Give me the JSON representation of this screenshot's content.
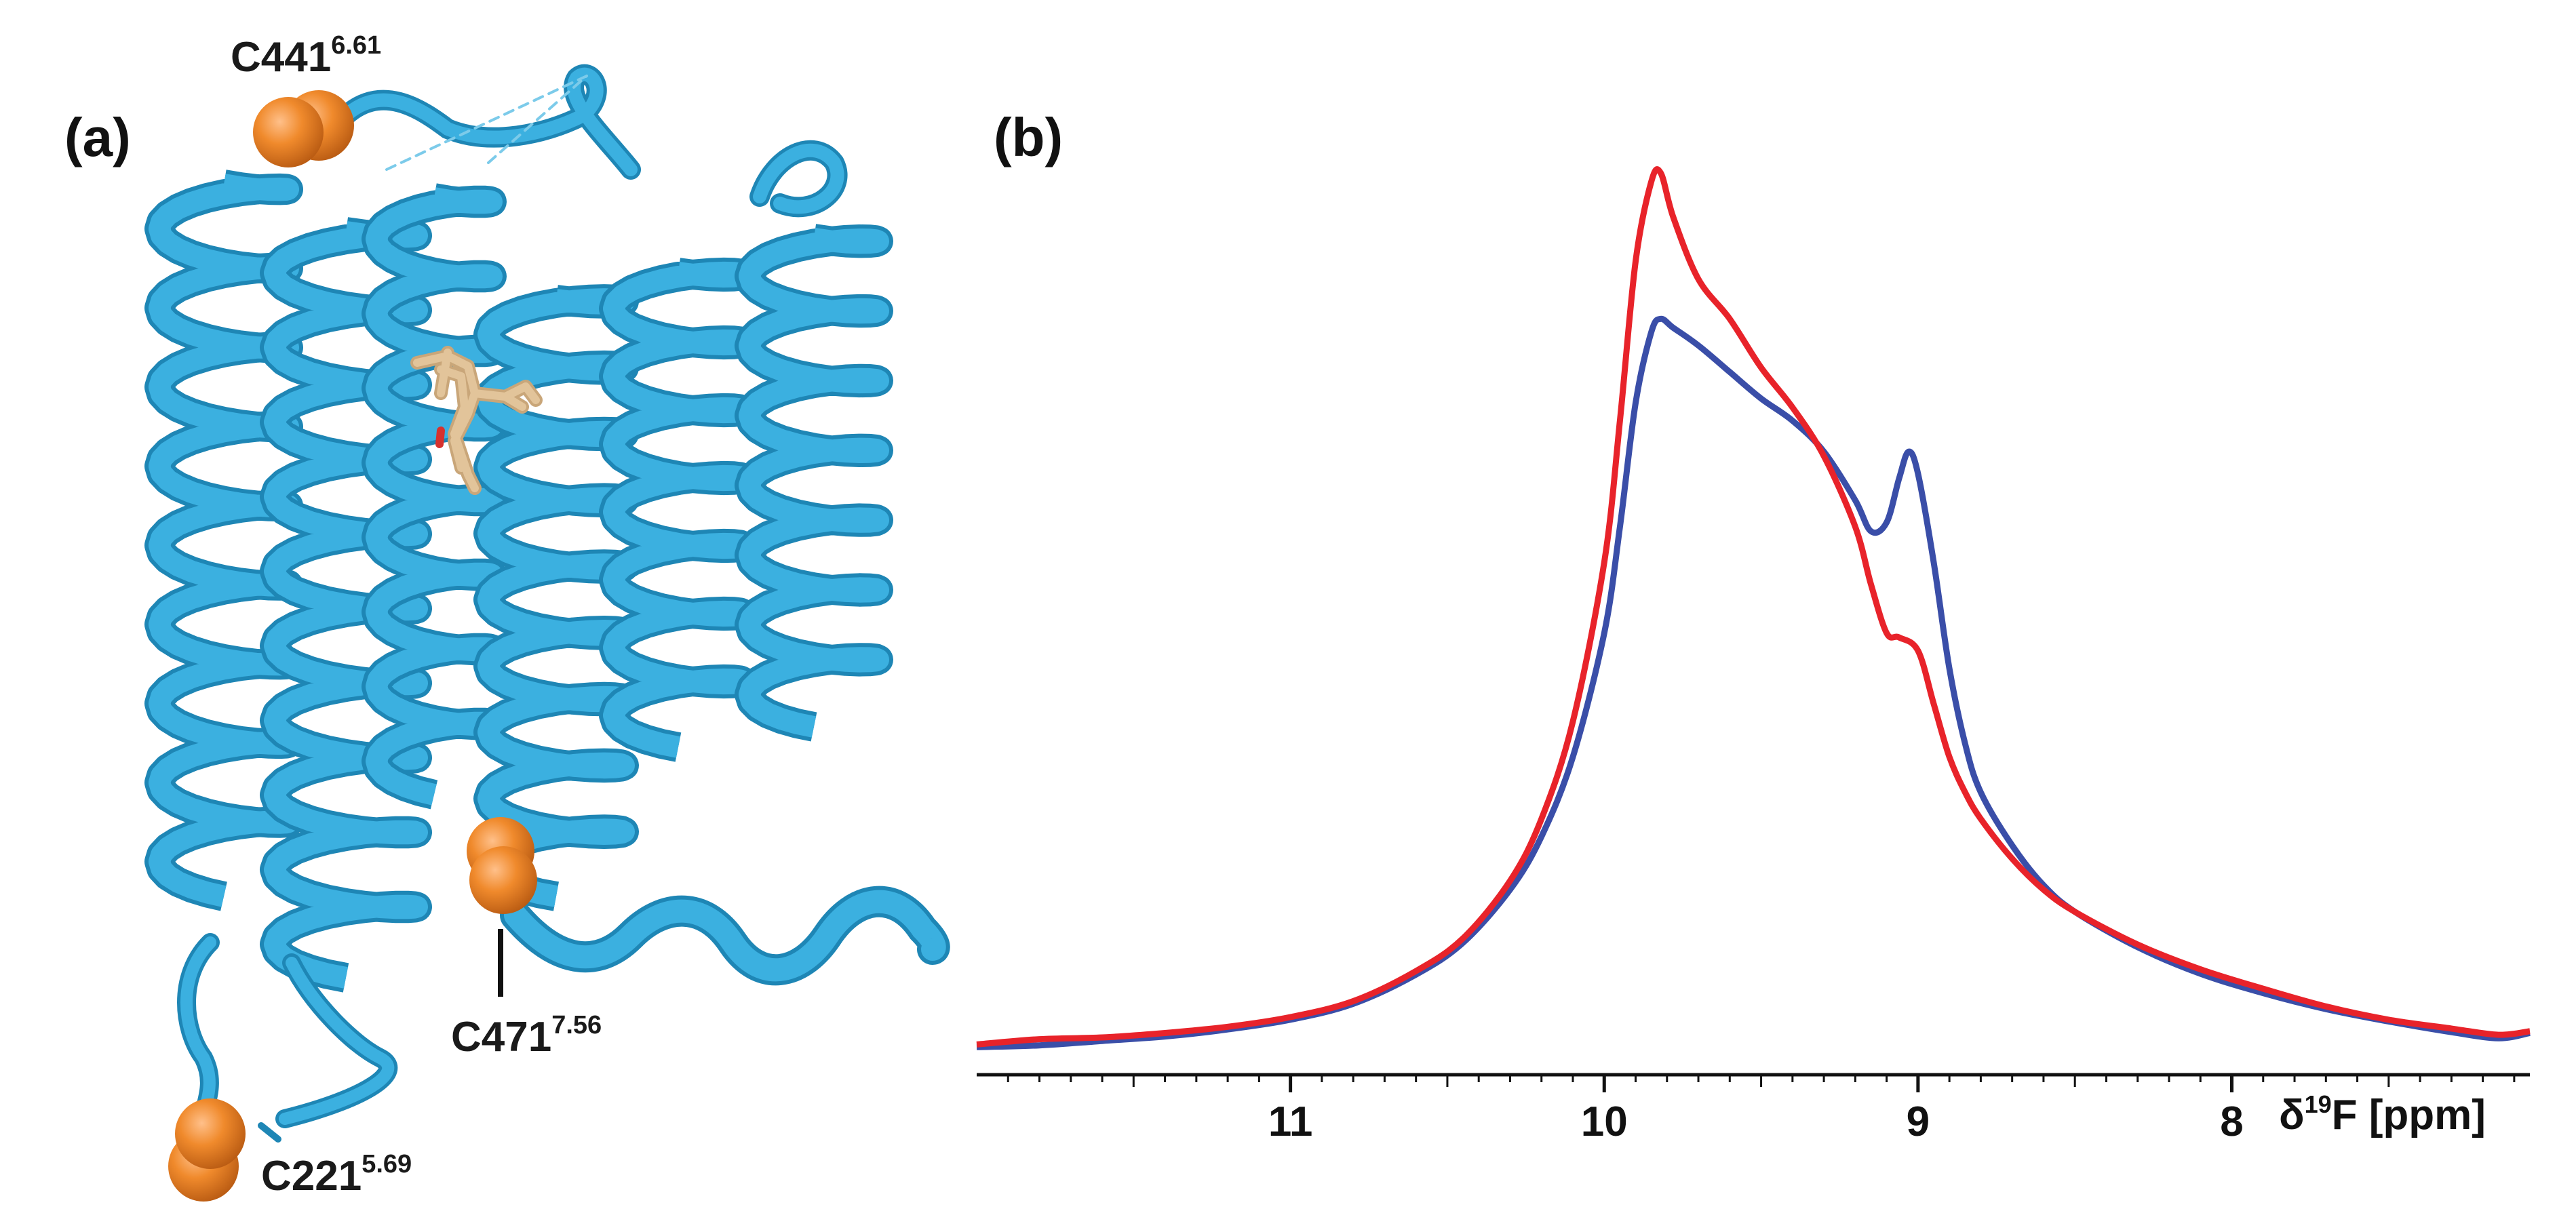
{
  "panels": {
    "a": {
      "letter": "(a)"
    },
    "b": {
      "letter": "(b)"
    }
  },
  "structure": {
    "helix_color": "#3BB0E0",
    "helix_edge_color": "#1E86B5",
    "ligand_color": "#D9B88C",
    "sphere_color": "#F08A2C",
    "labels": [
      {
        "id": "c441",
        "base": "C441",
        "sup": "6.61"
      },
      {
        "id": "c471",
        "base": "C471",
        "sup": "7.56"
      },
      {
        "id": "c221",
        "base": "C221",
        "sup": "5.69"
      }
    ]
  },
  "chart_data": {
    "type": "line",
    "xlabel_prefix": "δ",
    "xlabel_sup": "19",
    "xlabel_suffix": "F [ppm]",
    "xlim": [
      12.0,
      7.05
    ],
    "ylim": [
      0,
      100
    ],
    "x_reversed": true,
    "xticks": [
      11,
      10,
      9,
      8
    ],
    "ylabel": "",
    "grid": false,
    "series": [
      {
        "color": "#3A4EA8",
        "points": [
          [
            12.0,
            1.2
          ],
          [
            11.8,
            1.4
          ],
          [
            11.6,
            1.9
          ],
          [
            11.4,
            2.4
          ],
          [
            11.2,
            3.2
          ],
          [
            11.0,
            4.3
          ],
          [
            10.8,
            6.1
          ],
          [
            10.6,
            9.4
          ],
          [
            10.45,
            13.0
          ],
          [
            10.3,
            19.0
          ],
          [
            10.2,
            25.0
          ],
          [
            10.1,
            34.0
          ],
          [
            10.0,
            48.0
          ],
          [
            9.95,
            60.0
          ],
          [
            9.9,
            74.0
          ],
          [
            9.85,
            82.0
          ],
          [
            9.82,
            83.5
          ],
          [
            9.78,
            82.5
          ],
          [
            9.7,
            80.5
          ],
          [
            9.6,
            77.5
          ],
          [
            9.5,
            74.5
          ],
          [
            9.4,
            72.0
          ],
          [
            9.3,
            68.5
          ],
          [
            9.2,
            63.0
          ],
          [
            9.15,
            59.5
          ],
          [
            9.1,
            60.5
          ],
          [
            9.06,
            65.5
          ],
          [
            9.03,
            68.5
          ],
          [
            9.0,
            66.0
          ],
          [
            8.95,
            56.0
          ],
          [
            8.9,
            44.0
          ],
          [
            8.85,
            35.5
          ],
          [
            8.8,
            30.0
          ],
          [
            8.7,
            24.0
          ],
          [
            8.6,
            19.5
          ],
          [
            8.5,
            16.5
          ],
          [
            8.3,
            12.5
          ],
          [
            8.1,
            9.5
          ],
          [
            7.9,
            7.3
          ],
          [
            7.7,
            5.5
          ],
          [
            7.5,
            4.1
          ],
          [
            7.3,
            2.9
          ],
          [
            7.15,
            2.2
          ],
          [
            7.05,
            2.8
          ]
        ]
      },
      {
        "color": "#E8232A",
        "points": [
          [
            12.0,
            1.5
          ],
          [
            11.8,
            2.1
          ],
          [
            11.6,
            2.3
          ],
          [
            11.4,
            2.8
          ],
          [
            11.2,
            3.5
          ],
          [
            11.0,
            4.6
          ],
          [
            10.8,
            6.4
          ],
          [
            10.6,
            9.8
          ],
          [
            10.45,
            13.5
          ],
          [
            10.3,
            20.0
          ],
          [
            10.2,
            27.0
          ],
          [
            10.1,
            38.0
          ],
          [
            10.0,
            56.0
          ],
          [
            9.95,
            72.0
          ],
          [
            9.9,
            90.0
          ],
          [
            9.85,
            99.0
          ],
          [
            9.82,
            100.0
          ],
          [
            9.78,
            95.0
          ],
          [
            9.7,
            88.0
          ],
          [
            9.6,
            83.5
          ],
          [
            9.5,
            78.0
          ],
          [
            9.4,
            73.5
          ],
          [
            9.3,
            68.0
          ],
          [
            9.2,
            60.0
          ],
          [
            9.15,
            53.5
          ],
          [
            9.1,
            48.0
          ],
          [
            9.06,
            47.5
          ],
          [
            9.0,
            46.0
          ],
          [
            8.95,
            40.0
          ],
          [
            8.9,
            34.0
          ],
          [
            8.85,
            30.0
          ],
          [
            8.8,
            27.0
          ],
          [
            8.7,
            22.5
          ],
          [
            8.6,
            19.0
          ],
          [
            8.5,
            16.5
          ],
          [
            8.3,
            12.8
          ],
          [
            8.1,
            10.0
          ],
          [
            7.9,
            7.8
          ],
          [
            7.7,
            5.8
          ],
          [
            7.5,
            4.3
          ],
          [
            7.3,
            3.3
          ],
          [
            7.15,
            2.6
          ],
          [
            7.05,
            3.0
          ]
        ]
      }
    ]
  }
}
